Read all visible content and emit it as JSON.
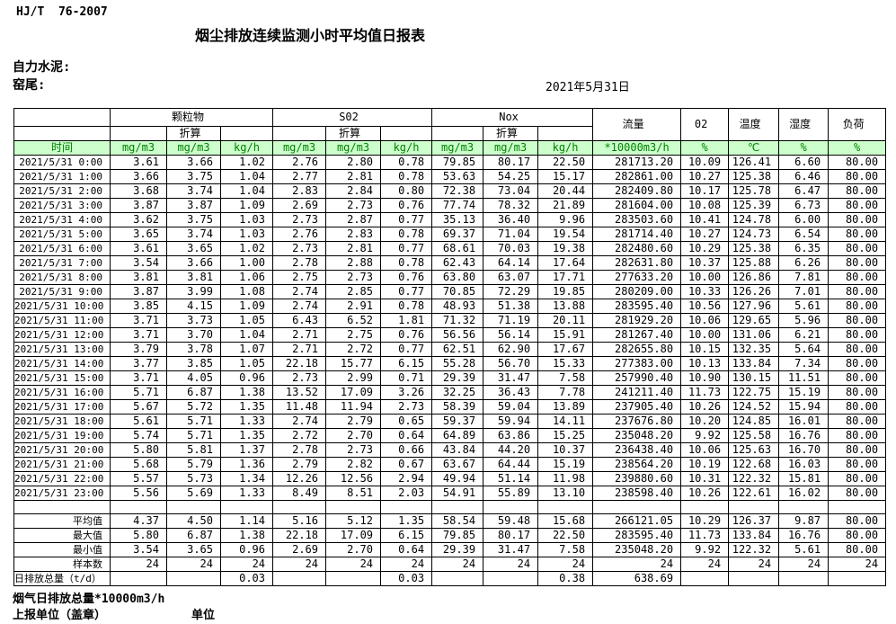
{
  "page": {
    "standard": "HJ/T  76-2007",
    "title": "烟尘排放连续监测小时平均值日报表",
    "company_line": "自力水泥:",
    "station_line": "窑尾:",
    "date": "2021年5月31日"
  },
  "colors": {
    "units_row_bg": "#ccffcc",
    "units_row_text": "#008000",
    "border": "#000000"
  },
  "table": {
    "time_header": "时间",
    "converted_label": "折算",
    "groups": [
      {
        "label": "颗粒物"
      },
      {
        "label": "S02"
      },
      {
        "label": "Nox"
      }
    ],
    "scalar_headers": [
      {
        "label": "流量"
      },
      {
        "label": "02"
      },
      {
        "label": "温度"
      },
      {
        "label": "湿度"
      },
      {
        "label": "负荷"
      }
    ],
    "units": [
      "mg/m3",
      "mg/m3",
      "kg/h",
      "mg/m3",
      "mg/m3",
      "kg/h",
      "mg/m3",
      "mg/m3",
      "kg/h",
      "*10000m3/h",
      "%",
      "℃",
      "%",
      "%"
    ],
    "rows": [
      {
        "time": "2021/5/31  0:00",
        "values": [
          "3.61",
          "3.66",
          "1.02",
          "2.76",
          "2.80",
          "0.78",
          "79.85",
          "80.17",
          "22.50",
          "281713.20",
          "10.09",
          "126.41",
          "6.60",
          "80.00"
        ]
      },
      {
        "time": "2021/5/31  1:00",
        "values": [
          "3.66",
          "3.75",
          "1.04",
          "2.77",
          "2.81",
          "0.78",
          "53.63",
          "54.25",
          "15.17",
          "282861.00",
          "10.27",
          "125.38",
          "6.46",
          "80.00"
        ]
      },
      {
        "time": "2021/5/31  2:00",
        "values": [
          "3.68",
          "3.74",
          "1.04",
          "2.83",
          "2.84",
          "0.80",
          "72.38",
          "73.04",
          "20.44",
          "282409.80",
          "10.17",
          "125.78",
          "6.47",
          "80.00"
        ]
      },
      {
        "time": "2021/5/31  3:00",
        "values": [
          "3.87",
          "3.87",
          "1.09",
          "2.69",
          "2.73",
          "0.76",
          "77.74",
          "78.32",
          "21.89",
          "281604.00",
          "10.08",
          "125.39",
          "6.73",
          "80.00"
        ]
      },
      {
        "time": "2021/5/31  4:00",
        "values": [
          "3.62",
          "3.75",
          "1.03",
          "2.73",
          "2.87",
          "0.77",
          "35.13",
          "36.40",
          "9.96",
          "283503.60",
          "10.41",
          "124.78",
          "6.00",
          "80.00"
        ]
      },
      {
        "time": "2021/5/31  5:00",
        "values": [
          "3.65",
          "3.74",
          "1.03",
          "2.76",
          "2.83",
          "0.78",
          "69.37",
          "71.04",
          "19.54",
          "281714.40",
          "10.27",
          "124.73",
          "6.54",
          "80.00"
        ]
      },
      {
        "time": "2021/5/31  6:00",
        "values": [
          "3.61",
          "3.65",
          "1.02",
          "2.73",
          "2.81",
          "0.77",
          "68.61",
          "70.03",
          "19.38",
          "282480.60",
          "10.29",
          "125.38",
          "6.35",
          "80.00"
        ]
      },
      {
        "time": "2021/5/31  7:00",
        "values": [
          "3.54",
          "3.66",
          "1.00",
          "2.78",
          "2.88",
          "0.78",
          "62.43",
          "64.14",
          "17.64",
          "282631.80",
          "10.37",
          "125.88",
          "6.26",
          "80.00"
        ]
      },
      {
        "time": "2021/5/31  8:00",
        "values": [
          "3.81",
          "3.81",
          "1.06",
          "2.75",
          "2.73",
          "0.76",
          "63.80",
          "63.07",
          "17.71",
          "277633.20",
          "10.00",
          "126.86",
          "7.81",
          "80.00"
        ]
      },
      {
        "time": "2021/5/31  9:00",
        "values": [
          "3.87",
          "3.99",
          "1.08",
          "2.74",
          "2.85",
          "0.77",
          "70.85",
          "72.29",
          "19.85",
          "280209.00",
          "10.33",
          "126.26",
          "7.01",
          "80.00"
        ]
      },
      {
        "time": "2021/5/31 10:00",
        "values": [
          "3.85",
          "4.15",
          "1.09",
          "2.74",
          "2.91",
          "0.78",
          "48.93",
          "51.38",
          "13.88",
          "283595.40",
          "10.56",
          "127.96",
          "5.61",
          "80.00"
        ]
      },
      {
        "time": "2021/5/31 11:00",
        "values": [
          "3.71",
          "3.73",
          "1.05",
          "6.43",
          "6.52",
          "1.81",
          "71.32",
          "71.19",
          "20.11",
          "281929.20",
          "10.06",
          "129.65",
          "5.96",
          "80.00"
        ]
      },
      {
        "time": "2021/5/31 12:00",
        "values": [
          "3.71",
          "3.70",
          "1.04",
          "2.71",
          "2.75",
          "0.76",
          "56.56",
          "56.14",
          "15.91",
          "281267.40",
          "10.00",
          "131.06",
          "6.21",
          "80.00"
        ]
      },
      {
        "time": "2021/5/31 13:00",
        "values": [
          "3.79",
          "3.78",
          "1.07",
          "2.71",
          "2.72",
          "0.77",
          "62.51",
          "62.90",
          "17.67",
          "282655.80",
          "10.15",
          "132.35",
          "5.64",
          "80.00"
        ]
      },
      {
        "time": "2021/5/31 14:00",
        "values": [
          "3.77",
          "3.85",
          "1.05",
          "22.18",
          "15.77",
          "6.15",
          "55.28",
          "56.70",
          "15.33",
          "277383.00",
          "10.13",
          "133.84",
          "7.34",
          "80.00"
        ]
      },
      {
        "time": "2021/5/31 15:00",
        "values": [
          "3.71",
          "4.05",
          "0.96",
          "2.73",
          "2.99",
          "0.71",
          "29.39",
          "31.47",
          "7.58",
          "257990.40",
          "10.90",
          "130.15",
          "11.51",
          "80.00"
        ]
      },
      {
        "time": "2021/5/31 16:00",
        "values": [
          "5.71",
          "6.87",
          "1.38",
          "13.52",
          "17.09",
          "3.26",
          "32.25",
          "36.43",
          "7.78",
          "241211.40",
          "11.73",
          "122.75",
          "15.19",
          "80.00"
        ]
      },
      {
        "time": "2021/5/31 17:00",
        "values": [
          "5.67",
          "5.72",
          "1.35",
          "11.48",
          "11.94",
          "2.73",
          "58.39",
          "59.04",
          "13.89",
          "237905.40",
          "10.26",
          "124.52",
          "15.94",
          "80.00"
        ]
      },
      {
        "time": "2021/5/31 18:00",
        "values": [
          "5.61",
          "5.71",
          "1.33",
          "2.74",
          "2.79",
          "0.65",
          "59.37",
          "59.94",
          "14.11",
          "237676.80",
          "10.20",
          "124.85",
          "16.01",
          "80.00"
        ]
      },
      {
        "time": "2021/5/31 19:00",
        "values": [
          "5.74",
          "5.71",
          "1.35",
          "2.72",
          "2.70",
          "0.64",
          "64.89",
          "63.86",
          "15.25",
          "235048.20",
          "9.92",
          "125.58",
          "16.76",
          "80.00"
        ]
      },
      {
        "time": "2021/5/31 20:00",
        "values": [
          "5.80",
          "5.81",
          "1.37",
          "2.78",
          "2.73",
          "0.66",
          "43.84",
          "44.20",
          "10.37",
          "236438.40",
          "10.06",
          "125.63",
          "16.70",
          "80.00"
        ]
      },
      {
        "time": "2021/5/31 21:00",
        "values": [
          "5.68",
          "5.79",
          "1.36",
          "2.79",
          "2.82",
          "0.67",
          "63.67",
          "64.44",
          "15.19",
          "238564.20",
          "10.19",
          "122.68",
          "16.03",
          "80.00"
        ]
      },
      {
        "time": "2021/5/31 22:00",
        "values": [
          "5.57",
          "5.73",
          "1.34",
          "12.26",
          "12.56",
          "2.94",
          "49.94",
          "51.14",
          "11.98",
          "239880.60",
          "10.31",
          "122.32",
          "15.81",
          "80.00"
        ]
      },
      {
        "time": "2021/5/31 23:00",
        "values": [
          "5.56",
          "5.69",
          "1.33",
          "8.49",
          "8.51",
          "2.03",
          "54.91",
          "55.89",
          "13.10",
          "238598.40",
          "10.26",
          "122.61",
          "16.02",
          "80.00"
        ]
      }
    ],
    "summary": [
      {
        "label": "平均值",
        "values": [
          "4.37",
          "4.50",
          "1.14",
          "5.16",
          "5.12",
          "1.35",
          "58.54",
          "59.48",
          "15.68",
          "266121.05",
          "10.29",
          "126.37",
          "9.87",
          "80.00"
        ]
      },
      {
        "label": "最大值",
        "values": [
          "5.80",
          "6.87",
          "1.38",
          "22.18",
          "17.09",
          "6.15",
          "79.85",
          "80.17",
          "22.50",
          "283595.40",
          "11.73",
          "133.84",
          "16.76",
          "80.00"
        ]
      },
      {
        "label": "最小值",
        "values": [
          "3.54",
          "3.65",
          "0.96",
          "2.69",
          "2.70",
          "0.64",
          "29.39",
          "31.47",
          "7.58",
          "235048.20",
          "9.92",
          "122.32",
          "5.61",
          "80.00"
        ]
      },
      {
        "label": "样本数",
        "values": [
          "24",
          "24",
          "24",
          "24",
          "24",
          "24",
          "24",
          "24",
          "24",
          "24",
          "24",
          "24",
          "24",
          "24"
        ]
      },
      {
        "label": "日排放总量（t/d）",
        "label_align": "left",
        "values": [
          "",
          "",
          "0.03",
          "",
          "",
          "0.03",
          "",
          "",
          "0.38",
          "638.69",
          "",
          "",
          "",
          ""
        ]
      }
    ]
  },
  "footer": {
    "flue_total_label": "烟气日排放总量*10000m3/h",
    "report_unit_label": "上报单位（盖章）",
    "unit_label": "单位"
  }
}
